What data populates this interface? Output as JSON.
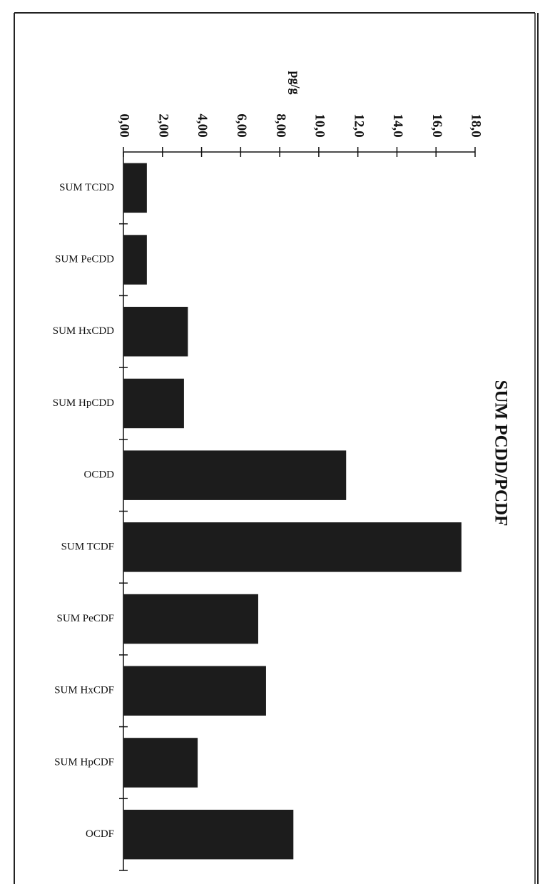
{
  "chart_data": {
    "type": "bar",
    "orientation": "horizontal",
    "title": "SUM PCDD/PCDF",
    "ylabel": "pg/g",
    "categories": [
      "SUM TCDD",
      "SUM PeCDD",
      "SUM HxCDD",
      "SUM HpCDD",
      "OCDD",
      "SUM TCDF",
      "SUM PeCDF",
      "SUM HxCDF",
      "SUM HpCDF",
      "OCDF"
    ],
    "values": [
      1.2,
      1.2,
      3.3,
      3.1,
      11.4,
      17.3,
      6.9,
      7.3,
      3.8,
      8.7
    ],
    "ylim": [
      0,
      18
    ],
    "ticks": [
      0,
      2,
      4,
      6,
      8,
      10,
      12,
      14,
      16,
      18
    ],
    "tick_labels": [
      "0,00",
      "2,00",
      "4,00",
      "6,00",
      "8,00",
      "10,0",
      "12,0",
      "14,0",
      "16,0",
      "18,0"
    ],
    "grid": false,
    "legend": "none",
    "bar_color": "#1c1c1c"
  }
}
